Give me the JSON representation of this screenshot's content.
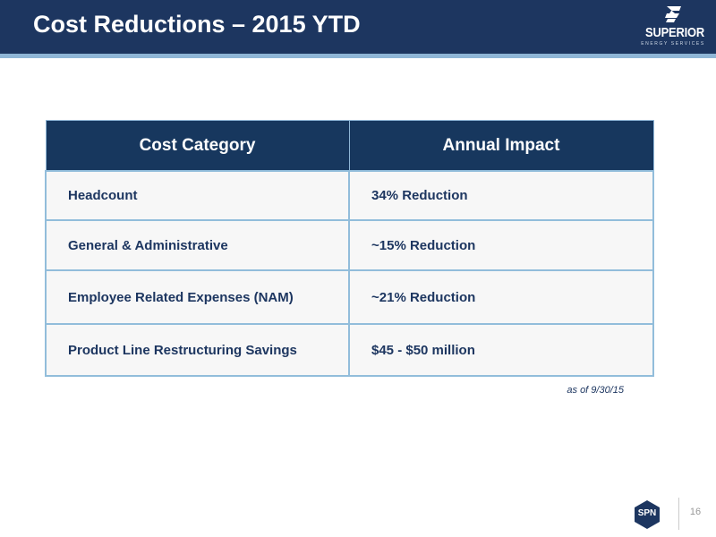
{
  "header": {
    "title": "Cost Reductions – 2015 YTD",
    "logo_name": "SUPERIOR",
    "logo_subtitle": "ENERGY SERVICES",
    "background_color": "#1d3660",
    "stripe_color": "#8fb6d6"
  },
  "table": {
    "columns": [
      "Cost Category",
      "Annual Impact"
    ],
    "rows": [
      {
        "category": "Headcount",
        "impact": "34% Reduction"
      },
      {
        "category": "General & Administrative",
        "impact": "~15% Reduction"
      },
      {
        "category": "Employee Related Expenses (NAM)",
        "impact": "~21% Reduction"
      },
      {
        "category": "Product Line Restructuring Savings",
        "impact": "$45 - $50 million"
      }
    ],
    "header_color": "#17375e",
    "border_color": "#92bddb"
  },
  "footnote": "as of 9/30/15",
  "footer": {
    "badge_label": "SPN",
    "page_number": "16"
  }
}
